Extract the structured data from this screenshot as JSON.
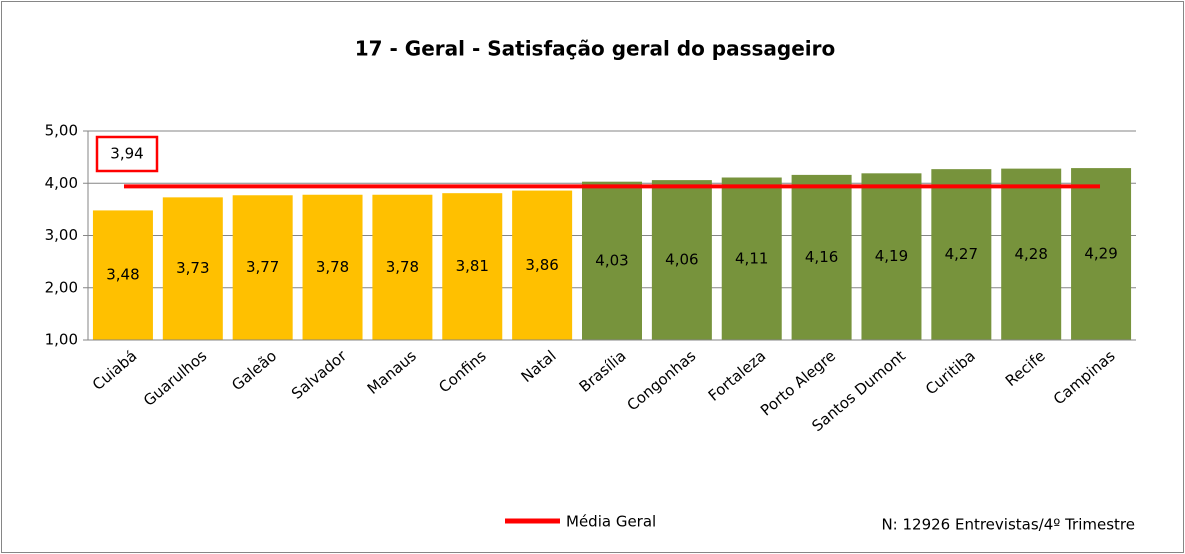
{
  "chart_data": {
    "type": "bar",
    "title": "17 - Geral - Satisfação geral do passageiro",
    "categories": [
      "Cuiabá",
      "Guarulhos",
      "Galeão",
      "Salvador",
      "Manaus",
      "Confins",
      "Natal",
      "Brasília",
      "Congonhas",
      "Fortaleza",
      "Porto Alegre",
      "Santos Dumont",
      "Curitiba",
      "Recife",
      "Campinas"
    ],
    "values": [
      3.48,
      3.73,
      3.77,
      3.78,
      3.78,
      3.81,
      3.86,
      4.03,
      4.06,
      4.11,
      4.16,
      4.19,
      4.27,
      4.28,
      4.29
    ],
    "value_labels": [
      "3,48",
      "3,73",
      "3,77",
      "3,78",
      "3,78",
      "3,81",
      "3,86",
      "4,03",
      "4,06",
      "4,11",
      "4,16",
      "4,19",
      "4,27",
      "4,28",
      "4,29"
    ],
    "colors": [
      "#FFC000",
      "#FFC000",
      "#FFC000",
      "#FFC000",
      "#FFC000",
      "#FFC000",
      "#FFC000",
      "#77933C",
      "#77933C",
      "#77933C",
      "#77933C",
      "#77933C",
      "#77933C",
      "#77933C",
      "#77933C"
    ],
    "ylim": [
      1,
      5
    ],
    "yticks": [
      {
        "value": 1,
        "label": "1,00"
      },
      {
        "value": 2,
        "label": "2,00"
      },
      {
        "value": 3,
        "label": "3,00"
      },
      {
        "value": 4,
        "label": "4,00"
      },
      {
        "value": 5,
        "label": "5,00"
      }
    ],
    "grid": true,
    "reference": {
      "name": "Média Geral",
      "value": 3.94,
      "label": "3,94",
      "color": "#FF0000"
    },
    "note": "N: 12926 Entrevistas/4º Trimestre"
  }
}
